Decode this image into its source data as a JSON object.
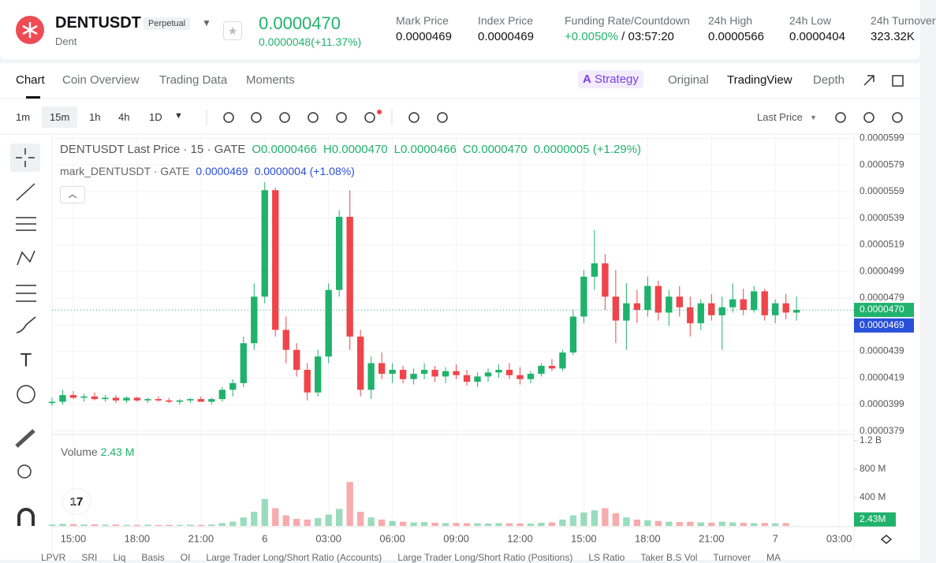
{
  "header": {
    "symbol": "DENTUSDT",
    "contract": "Perpetual",
    "name": "Dent",
    "price": "0.0000470",
    "change": "0.0000048(+11.37%)",
    "stats": [
      {
        "label": "Mark Price",
        "value": "0.0000469"
      },
      {
        "label": "Index Price",
        "value": "0.0000469"
      },
      {
        "label": "Funding Rate/Countdown",
        "value": "+0.0050%",
        "value2": "/ 03:57:20"
      },
      {
        "label": "24h High",
        "value": "0.0000566"
      },
      {
        "label": "24h Low",
        "value": "0.0000404"
      },
      {
        "label": "24h Turnover",
        "value": "323.32K"
      }
    ]
  },
  "tabs": [
    "Chart",
    "Coin Overview",
    "Trading Data",
    "Moments"
  ],
  "views": [
    "Strategy",
    "Original",
    "TradingView",
    "Depth"
  ],
  "intervals": [
    "1m",
    "15m",
    "1h",
    "4h",
    "1D"
  ],
  "price_source": "Last Price",
  "bottom_tabs": [
    "LPVR",
    "SRI",
    "Liq",
    "Basis",
    "OI",
    "Large Trader Long/Short Ratio (Accounts)",
    "Large Trader Long/Short Ratio (Positions)",
    "LS Ratio",
    "Taker B.S Vol",
    "Turnover",
    "MA"
  ],
  "chart_data": {
    "type": "candlestick",
    "legend": {
      "title": "DENTUSDT Last Price · 15 · GATE",
      "open": "O0.0000466",
      "high": "H0.0000470",
      "low": "L0.0000466",
      "close": "C0.0000470",
      "change": "0.0000005 (+1.29%)"
    },
    "mark_legend": {
      "title": "mark_DENTUSDT · GATE",
      "value": "0.0000469",
      "change": "0.0000004 (+1.08%)"
    },
    "up_color": "#20b26c",
    "down_color": "#ef454a",
    "grid": true,
    "x": [
      -10,
      -9.5,
      -9,
      -8.5,
      -8,
      -7.5,
      -7,
      -6.5,
      -6,
      -5.5,
      -5,
      -4.5,
      -4,
      -3.5,
      -3,
      -2.5,
      -2,
      -1.5,
      -1,
      -0.5,
      0,
      0.5,
      1,
      1.5,
      2,
      2.5,
      3,
      3.5,
      4,
      4.5,
      5,
      5.5,
      6,
      6.5,
      7,
      7.5,
      8,
      8.5,
      9,
      9.5,
      10,
      10.5,
      11,
      11.5,
      12,
      12.5,
      13,
      13.5,
      14,
      14.5,
      15,
      15.5,
      16,
      16.5,
      17,
      17.5,
      18,
      18.5,
      19,
      19.5,
      20,
      20.5,
      21,
      21.5,
      22,
      22.5,
      23,
      23.5,
      24,
      24.5,
      25
    ],
    "open": [
      4e-05,
      4.01e-05,
      4.06e-05,
      4.04e-05,
      4.05e-05,
      4.03e-05,
      4.04e-05,
      4.02e-05,
      4.04e-05,
      4.02e-05,
      4.03e-05,
      4.02e-05,
      4.01e-05,
      4.02e-05,
      4.03e-05,
      4.01e-05,
      4.03e-05,
      4.1e-05,
      4.15e-05,
      4.45e-05,
      4.8e-05,
      5.6e-05,
      4.55e-05,
      4.4e-05,
      4.25e-05,
      4.08e-05,
      4.35e-05,
      4.85e-05,
      5.4e-05,
      4.5e-05,
      4.1e-05,
      4.3e-05,
      4.22e-05,
      4.25e-05,
      4.18e-05,
      4.22e-05,
      4.25e-05,
      4.2e-05,
      4.24e-05,
      4.21e-05,
      4.16e-05,
      4.2e-05,
      4.23e-05,
      4.25e-05,
      4.21e-05,
      4.18e-05,
      4.22e-05,
      4.28e-05,
      4.26e-05,
      4.38e-05,
      4.65e-05,
      4.95e-05,
      5.05e-05,
      4.8e-05,
      4.62e-05,
      4.75e-05,
      4.7e-05,
      4.88e-05,
      4.68e-05,
      4.8e-05,
      4.72e-05,
      4.6e-05,
      4.75e-05,
      4.66e-05,
      4.72e-05,
      4.78e-05,
      4.7e-05,
      4.84e-05,
      4.66e-05,
      4.75e-05,
      4.68e-05
    ],
    "high": [
      4.04e-05,
      4.1e-05,
      4.09e-05,
      4.07e-05,
      4.08e-05,
      4.06e-05,
      4.06e-05,
      4.05e-05,
      4.05e-05,
      4.04e-05,
      4.05e-05,
      4.04e-05,
      4.03e-05,
      4.04e-05,
      4.05e-05,
      4.04e-05,
      4.12e-05,
      4.18e-05,
      4.5e-05,
      4.9e-05,
      5.66e-05,
      5.62e-05,
      4.65e-05,
      4.45e-05,
      4.3e-05,
      4.4e-05,
      4.9e-05,
      5.45e-05,
      5.6e-05,
      4.55e-05,
      4.35e-05,
      4.38e-05,
      4.3e-05,
      4.28e-05,
      4.26e-05,
      4.3e-05,
      4.28e-05,
      4.27e-05,
      4.29e-05,
      4.25e-05,
      4.23e-05,
      4.26e-05,
      4.29e-05,
      4.3e-05,
      4.27e-05,
      4.24e-05,
      4.3e-05,
      4.33e-05,
      4.4e-05,
      4.7e-05,
      5e-05,
      5.3e-05,
      5.12e-05,
      5e-05,
      4.9e-05,
      4.85e-05,
      4.95e-05,
      4.92e-05,
      4.85e-05,
      4.88e-05,
      4.8e-05,
      4.78e-05,
      4.82e-05,
      4.8e-05,
      4.9e-05,
      4.86e-05,
      4.88e-05,
      4.86e-05,
      4.78e-05,
      4.82e-05,
      4.8e-05
    ],
    "low": [
      3.98e-05,
      3.99e-05,
      4.03e-05,
      4.01e-05,
      4.02e-05,
      4.01e-05,
      4e-05,
      4e-05,
      4.01e-05,
      4e-05,
      4.01e-05,
      4e-05,
      3.99e-05,
      4e-05,
      4.01e-05,
      3.99e-05,
      4.01e-05,
      4.05e-05,
      4.12e-05,
      4.4e-05,
      4.75e-05,
      4.5e-05,
      4.3e-05,
      4.2e-05,
      4.02e-05,
      4.05e-05,
      4.3e-05,
      4.8e-05,
      4.4e-05,
      4.05e-05,
      4.03e-05,
      4.18e-05,
      4.15e-05,
      4.15e-05,
      4.14e-05,
      4.18e-05,
      4.16e-05,
      4.15e-05,
      4.18e-05,
      4.13e-05,
      4.12e-05,
      4.16e-05,
      4.19e-05,
      4.18e-05,
      4.14e-05,
      4.15e-05,
      4.2e-05,
      4.24e-05,
      4.24e-05,
      4.36e-05,
      4.6e-05,
      4.85e-05,
      4.7e-05,
      4.45e-05,
      4.4e-05,
      4.6e-05,
      4.65e-05,
      4.62e-05,
      4.58e-05,
      4.65e-05,
      4.5e-05,
      4.55e-05,
      4.62e-05,
      4.4e-05,
      4.68e-05,
      4.66e-05,
      4.68e-05,
      4.62e-05,
      4.6e-05,
      4.63e-05,
      4.62e-05
    ],
    "close": [
      4.01e-05,
      4.06e-05,
      4.04e-05,
      4.05e-05,
      4.03e-05,
      4.04e-05,
      4.02e-05,
      4.04e-05,
      4.02e-05,
      4.03e-05,
      4.02e-05,
      4.01e-05,
      4.02e-05,
      4.03e-05,
      4.01e-05,
      4.03e-05,
      4.1e-05,
      4.15e-05,
      4.45e-05,
      4.8e-05,
      5.6e-05,
      4.55e-05,
      4.4e-05,
      4.25e-05,
      4.08e-05,
      4.35e-05,
      4.85e-05,
      5.4e-05,
      4.5e-05,
      4.1e-05,
      4.3e-05,
      4.22e-05,
      4.25e-05,
      4.18e-05,
      4.22e-05,
      4.25e-05,
      4.2e-05,
      4.24e-05,
      4.21e-05,
      4.16e-05,
      4.2e-05,
      4.23e-05,
      4.25e-05,
      4.21e-05,
      4.18e-05,
      4.22e-05,
      4.28e-05,
      4.26e-05,
      4.38e-05,
      4.65e-05,
      4.95e-05,
      5.05e-05,
      4.8e-05,
      4.62e-05,
      4.75e-05,
      4.7e-05,
      4.88e-05,
      4.68e-05,
      4.8e-05,
      4.72e-05,
      4.6e-05,
      4.75e-05,
      4.66e-05,
      4.72e-05,
      4.78e-05,
      4.7e-05,
      4.84e-05,
      4.66e-05,
      4.75e-05,
      4.68e-05,
      4.7e-05
    ],
    "xlim": [
      -10,
      27.7
    ],
    "xticks": [
      {
        "value": -9,
        "label": "15:00"
      },
      {
        "value": -6,
        "label": "18:00"
      },
      {
        "value": -3,
        "label": "21:00"
      },
      {
        "value": 0,
        "label": "6"
      },
      {
        "value": 3,
        "label": "03:00"
      },
      {
        "value": 6,
        "label": "06:00"
      },
      {
        "value": 9,
        "label": "09:00"
      },
      {
        "value": 12,
        "label": "12:00"
      },
      {
        "value": 15,
        "label": "15:00"
      },
      {
        "value": 18,
        "label": "18:00"
      },
      {
        "value": 21,
        "label": "21:00"
      },
      {
        "value": 24,
        "label": "7"
      },
      {
        "value": 27,
        "label": "03:00"
      }
    ],
    "ylim": [
      3.77e-05,
      6.01e-05
    ],
    "yticks": [
      {
        "value": 3.79e-05,
        "label": "0.0000379"
      },
      {
        "value": 3.99e-05,
        "label": "0.0000399"
      },
      {
        "value": 4.19e-05,
        "label": "0.0000419"
      },
      {
        "value": 4.39e-05,
        "label": "0.0000439"
      },
      {
        "value": 4.59e-05,
        "label": "0.0000459"
      },
      {
        "value": 4.79e-05,
        "label": "0.0000479"
      },
      {
        "value": 4.99e-05,
        "label": "0.0000499"
      },
      {
        "value": 5.19e-05,
        "label": "0.0000519"
      },
      {
        "value": 5.39e-05,
        "label": "0.0000539"
      },
      {
        "value": 5.59e-05,
        "label": "0.0000559"
      },
      {
        "value": 5.79e-05,
        "label": "0.0000579"
      },
      {
        "value": 5.99e-05,
        "label": "0.0000599"
      }
    ],
    "price_line": {
      "value": 4.7e-05,
      "label": "0.0000470"
    },
    "mark_line": {
      "value": 4.69e-05,
      "label": "0.0000469"
    },
    "volume": {
      "label": "Volume",
      "current_label": "2.43 M",
      "badge": "2.43M",
      "values": [
        20,
        30,
        25,
        20,
        22,
        18,
        20,
        15,
        15,
        18,
        14,
        16,
        15,
        17,
        15,
        20,
        40,
        60,
        120,
        200,
        380,
        250,
        150,
        100,
        90,
        110,
        160,
        240,
        620,
        200,
        120,
        90,
        70,
        60,
        50,
        55,
        45,
        40,
        42,
        40,
        38,
        35,
        40,
        38,
        36,
        35,
        45,
        50,
        90,
        150,
        190,
        220,
        250,
        180,
        120,
        90,
        80,
        70,
        60,
        55,
        60,
        50,
        45,
        60,
        50,
        45,
        40,
        42,
        38,
        40,
        2.43
      ],
      "ylim": [
        0,
        1260
      ],
      "yticks": [
        {
          "value": 400,
          "label": "400 M"
        },
        {
          "value": 800,
          "label": "800 M"
        },
        {
          "value": 1200,
          "label": "1.2 B"
        }
      ]
    }
  }
}
